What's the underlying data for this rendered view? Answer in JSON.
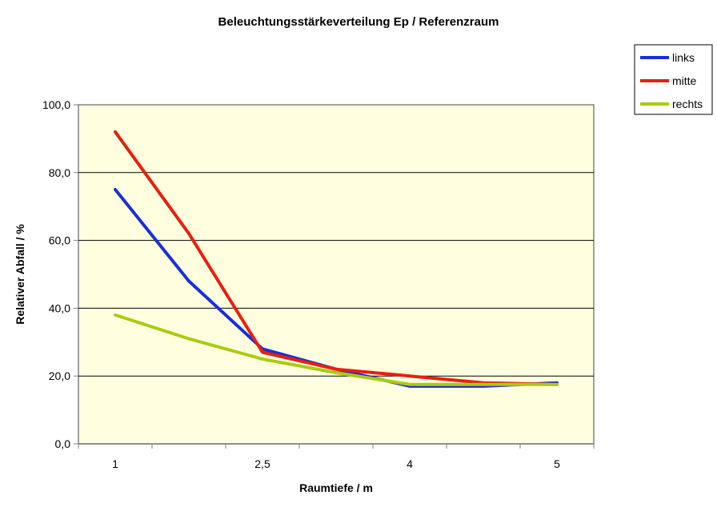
{
  "chart_data": {
    "type": "line",
    "title": "Beleuchtungsstärkeverteilung  Ep  /  Referenzraum",
    "xlabel": "Raumtiefe  /  m",
    "ylabel": "Relativer Abfall / %",
    "categories": [
      "1",
      "",
      "2,5",
      "",
      "4",
      "",
      "5"
    ],
    "ylim": [
      0,
      100
    ],
    "yticks": [
      "0,0",
      "20,0",
      "40,0",
      "60,0",
      "80,0",
      "100,0"
    ],
    "grid": true,
    "legend_position": "top-right",
    "plot_background": "#ffffe0",
    "series": [
      {
        "name": "links",
        "color": "#1a2fd8",
        "values": [
          75,
          48,
          28,
          22,
          17,
          17,
          18
        ]
      },
      {
        "name": "mitte",
        "color": "#e62010",
        "values": [
          92,
          62,
          27,
          22,
          20,
          18,
          17.5
        ]
      },
      {
        "name": "rechts",
        "color": "#a8cc10",
        "values": [
          38,
          31,
          25,
          21,
          17.5,
          17.5,
          17.5
        ]
      }
    ]
  }
}
